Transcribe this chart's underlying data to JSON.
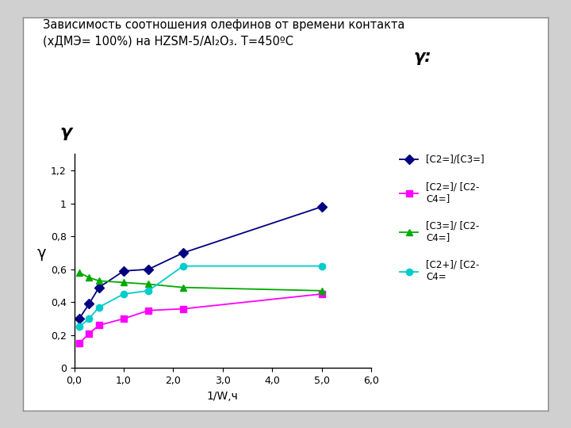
{
  "title_line1": "Зависимость соотношения олефинов от времени контакта",
  "title_line2": "(хДМЭ= 100%) на HZSM-5/Al₂O₃. T=450ºC",
  "ylabel": "γ",
  "xlabel": "1/W,ч",
  "xlim": [
    0,
    6.0
  ],
  "ylim": [
    0,
    1.3
  ],
  "xticks": [
    0.0,
    1.0,
    2.0,
    3.0,
    4.0,
    5.0,
    6.0
  ],
  "xtick_labels": [
    "0,0",
    "1,0",
    "2,0",
    "3,0",
    "4,0",
    "5,0",
    "6,0"
  ],
  "yticks": [
    0,
    0.2,
    0.4,
    0.6,
    0.8,
    1.0,
    1.2
  ],
  "ytick_labels": [
    "0",
    "0,2",
    "0,4",
    "0,6",
    "0,8",
    "1",
    "1,2"
  ],
  "series": [
    {
      "label": "[C2=]/[C3=]",
      "x": [
        0.1,
        0.3,
        0.5,
        1.0,
        1.5,
        2.2,
        5.0
      ],
      "y": [
        0.3,
        0.39,
        0.49,
        0.59,
        0.6,
        0.7,
        0.98
      ],
      "color": "#000080",
      "marker": "D",
      "markersize": 6,
      "linestyle": "-"
    },
    {
      "label": "[C2=]/ [C2-\nC4=]",
      "x": [
        0.1,
        0.3,
        0.5,
        1.0,
        1.5,
        2.2,
        5.0
      ],
      "y": [
        0.15,
        0.21,
        0.26,
        0.3,
        0.35,
        0.36,
        0.45
      ],
      "color": "#FF00FF",
      "marker": "s",
      "markersize": 6,
      "linestyle": "-"
    },
    {
      "label": "[C3=]/ [C2-\nC4=]",
      "x": [
        0.1,
        0.3,
        0.5,
        1.0,
        1.5,
        2.2,
        5.0
      ],
      "y": [
        0.58,
        0.55,
        0.53,
        0.52,
        0.51,
        0.49,
        0.47
      ],
      "color": "#00AA00",
      "marker": "^",
      "markersize": 6,
      "linestyle": "-"
    },
    {
      "label": "[C2+]/ [C2-\nC4=",
      "x": [
        0.1,
        0.3,
        0.5,
        1.0,
        1.5,
        2.2,
        5.0
      ],
      "y": [
        0.25,
        0.3,
        0.37,
        0.45,
        0.47,
        0.62,
        0.62
      ],
      "color": "#00CCCC",
      "marker": "o",
      "markersize": 6,
      "linestyle": "-"
    }
  ],
  "legend_title": "γ:",
  "outer_bg": "#D0D0D0",
  "inner_bg": "#FFFFFF",
  "plot_bg": "#FFFFFF"
}
